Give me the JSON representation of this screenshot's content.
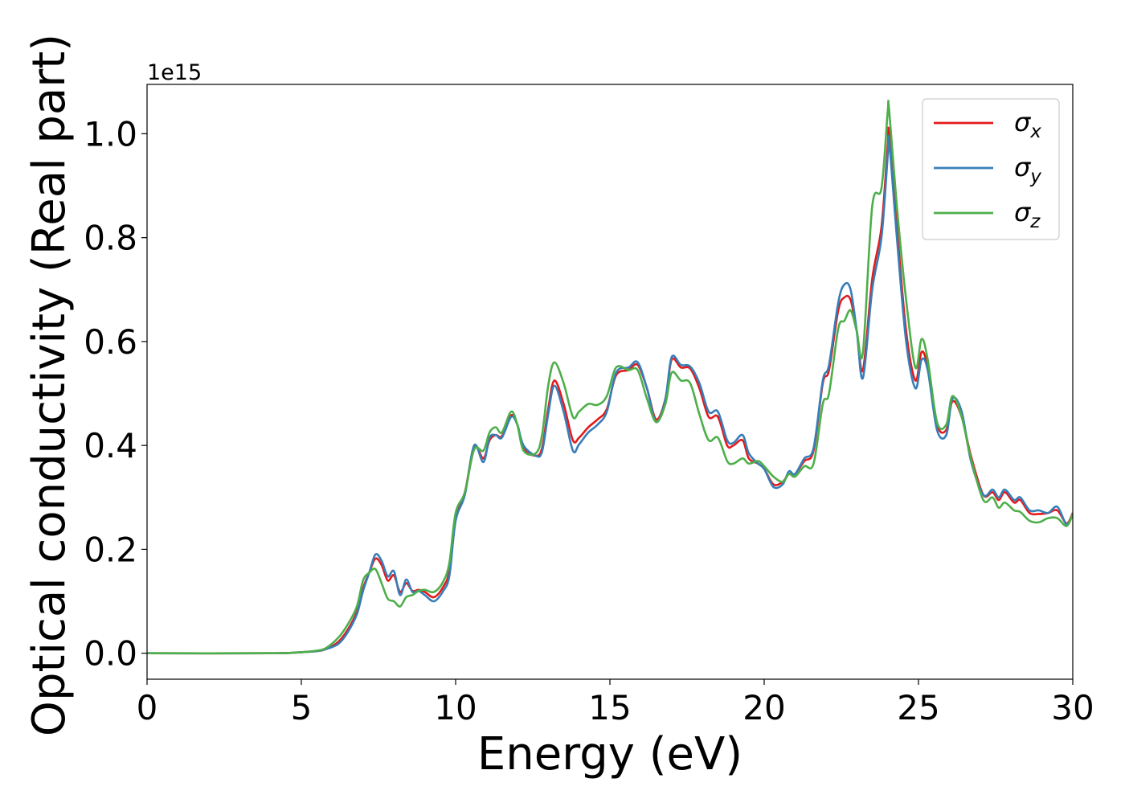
{
  "chart_data": {
    "type": "line",
    "xlabel": "Energy (eV)",
    "ylabel": "Optical conductivity (Real part)",
    "offset_text": "1e15",
    "xlim": [
      0,
      30
    ],
    "ylim": [
      -0.05,
      1.095
    ],
    "x_ticks": [
      0,
      5,
      10,
      15,
      20,
      25,
      30
    ],
    "x_tick_labels": [
      "0",
      "5",
      "10",
      "15",
      "20",
      "25",
      "30"
    ],
    "y_ticks": [
      0.0,
      0.2,
      0.4,
      0.6,
      0.8,
      1.0
    ],
    "y_tick_labels": [
      "0.0",
      "0.2",
      "0.4",
      "0.6",
      "0.8",
      "1.0"
    ],
    "grid": false,
    "legend_position": "top-right",
    "series": [
      {
        "name": "σ_x",
        "label_base": "σ",
        "label_sub": "x",
        "color": "#e41a1c",
        "points": [
          [
            0,
            0
          ],
          [
            4,
            0
          ],
          [
            5,
            0.002
          ],
          [
            5.5,
            0.004
          ],
          [
            5.8,
            0.008
          ],
          [
            6.2,
            0.022
          ],
          [
            6.5,
            0.045
          ],
          [
            6.8,
            0.08
          ],
          [
            7.0,
            0.125
          ],
          [
            7.2,
            0.155
          ],
          [
            7.4,
            0.182
          ],
          [
            7.6,
            0.17
          ],
          [
            7.8,
            0.14
          ],
          [
            8.0,
            0.15
          ],
          [
            8.2,
            0.118
          ],
          [
            8.4,
            0.135
          ],
          [
            8.6,
            0.12
          ],
          [
            8.8,
            0.122
          ],
          [
            9.0,
            0.118
          ],
          [
            9.3,
            0.108
          ],
          [
            9.6,
            0.128
          ],
          [
            9.8,
            0.16
          ],
          [
            10.0,
            0.265
          ],
          [
            10.3,
            0.31
          ],
          [
            10.6,
            0.398
          ],
          [
            10.9,
            0.375
          ],
          [
            11.1,
            0.41
          ],
          [
            11.3,
            0.42
          ],
          [
            11.5,
            0.418
          ],
          [
            11.8,
            0.458
          ],
          [
            12.0,
            0.44
          ],
          [
            12.2,
            0.395
          ],
          [
            12.6,
            0.38
          ],
          [
            12.8,
            0.395
          ],
          [
            13.0,
            0.47
          ],
          [
            13.2,
            0.525
          ],
          [
            13.5,
            0.48
          ],
          [
            13.8,
            0.41
          ],
          [
            14.0,
            0.415
          ],
          [
            14.3,
            0.435
          ],
          [
            14.6,
            0.45
          ],
          [
            14.9,
            0.47
          ],
          [
            15.2,
            0.535
          ],
          [
            15.6,
            0.545
          ],
          [
            15.9,
            0.555
          ],
          [
            16.2,
            0.51
          ],
          [
            16.5,
            0.45
          ],
          [
            16.8,
            0.49
          ],
          [
            17.0,
            0.565
          ],
          [
            17.3,
            0.55
          ],
          [
            17.6,
            0.548
          ],
          [
            17.9,
            0.51
          ],
          [
            18.2,
            0.455
          ],
          [
            18.5,
            0.455
          ],
          [
            18.8,
            0.4
          ],
          [
            19.0,
            0.4
          ],
          [
            19.3,
            0.41
          ],
          [
            19.5,
            0.375
          ],
          [
            19.8,
            0.365
          ],
          [
            20.0,
            0.355
          ],
          [
            20.3,
            0.325
          ],
          [
            20.6,
            0.33
          ],
          [
            20.8,
            0.345
          ],
          [
            21.0,
            0.345
          ],
          [
            21.3,
            0.37
          ],
          [
            21.6,
            0.39
          ],
          [
            21.9,
            0.52
          ],
          [
            22.1,
            0.545
          ],
          [
            22.4,
            0.66
          ],
          [
            22.6,
            0.685
          ],
          [
            22.8,
            0.68
          ],
          [
            23.0,
            0.62
          ],
          [
            23.2,
            0.545
          ],
          [
            23.5,
            0.72
          ],
          [
            23.8,
            0.82
          ],
          [
            24.0,
            0.975
          ],
          [
            24.05,
            1.0
          ],
          [
            24.3,
            0.82
          ],
          [
            24.6,
            0.62
          ],
          [
            24.9,
            0.525
          ],
          [
            25.1,
            0.58
          ],
          [
            25.3,
            0.55
          ],
          [
            25.6,
            0.44
          ],
          [
            25.9,
            0.43
          ],
          [
            26.1,
            0.485
          ],
          [
            26.4,
            0.455
          ],
          [
            26.7,
            0.38
          ],
          [
            27.1,
            0.305
          ],
          [
            27.4,
            0.31
          ],
          [
            27.6,
            0.295
          ],
          [
            27.8,
            0.31
          ],
          [
            28.1,
            0.29
          ],
          [
            28.3,
            0.295
          ],
          [
            28.6,
            0.27
          ],
          [
            28.9,
            0.268
          ],
          [
            29.2,
            0.27
          ],
          [
            29.5,
            0.275
          ],
          [
            29.8,
            0.25
          ],
          [
            30.0,
            0.27
          ]
        ]
      },
      {
        "name": "σ_y",
        "label_base": "σ",
        "label_sub": "y",
        "color": "#377eb8",
        "points": [
          [
            0,
            0
          ],
          [
            4,
            0
          ],
          [
            5,
            0.002
          ],
          [
            5.5,
            0.004
          ],
          [
            5.8,
            0.008
          ],
          [
            6.2,
            0.018
          ],
          [
            6.5,
            0.04
          ],
          [
            6.8,
            0.075
          ],
          [
            7.0,
            0.12
          ],
          [
            7.2,
            0.155
          ],
          [
            7.4,
            0.19
          ],
          [
            7.6,
            0.178
          ],
          [
            7.8,
            0.148
          ],
          [
            8.0,
            0.158
          ],
          [
            8.2,
            0.112
          ],
          [
            8.4,
            0.142
          ],
          [
            8.6,
            0.118
          ],
          [
            8.8,
            0.12
          ],
          [
            9.0,
            0.112
          ],
          [
            9.3,
            0.1
          ],
          [
            9.6,
            0.12
          ],
          [
            9.8,
            0.15
          ],
          [
            10.0,
            0.255
          ],
          [
            10.3,
            0.305
          ],
          [
            10.6,
            0.4
          ],
          [
            10.9,
            0.368
          ],
          [
            11.1,
            0.415
          ],
          [
            11.3,
            0.42
          ],
          [
            11.5,
            0.415
          ],
          [
            11.8,
            0.455
          ],
          [
            12.0,
            0.44
          ],
          [
            12.2,
            0.4
          ],
          [
            12.6,
            0.38
          ],
          [
            12.8,
            0.388
          ],
          [
            13.0,
            0.46
          ],
          [
            13.2,
            0.515
          ],
          [
            13.5,
            0.465
          ],
          [
            13.8,
            0.39
          ],
          [
            14.0,
            0.402
          ],
          [
            14.3,
            0.425
          ],
          [
            14.6,
            0.44
          ],
          [
            14.9,
            0.465
          ],
          [
            15.2,
            0.54
          ],
          [
            15.6,
            0.55
          ],
          [
            15.9,
            0.56
          ],
          [
            16.2,
            0.51
          ],
          [
            16.5,
            0.445
          ],
          [
            16.8,
            0.49
          ],
          [
            17.0,
            0.57
          ],
          [
            17.3,
            0.555
          ],
          [
            17.6,
            0.552
          ],
          [
            17.9,
            0.52
          ],
          [
            18.2,
            0.465
          ],
          [
            18.5,
            0.465
          ],
          [
            18.8,
            0.41
          ],
          [
            19.0,
            0.405
          ],
          [
            19.3,
            0.42
          ],
          [
            19.5,
            0.385
          ],
          [
            19.8,
            0.365
          ],
          [
            20.0,
            0.355
          ],
          [
            20.3,
            0.32
          ],
          [
            20.6,
            0.325
          ],
          [
            20.8,
            0.35
          ],
          [
            21.0,
            0.345
          ],
          [
            21.3,
            0.375
          ],
          [
            21.6,
            0.395
          ],
          [
            21.9,
            0.525
          ],
          [
            22.1,
            0.555
          ],
          [
            22.4,
            0.675
          ],
          [
            22.6,
            0.71
          ],
          [
            22.8,
            0.7
          ],
          [
            23.0,
            0.62
          ],
          [
            23.2,
            0.53
          ],
          [
            23.5,
            0.7
          ],
          [
            23.8,
            0.8
          ],
          [
            24.0,
            0.955
          ],
          [
            24.05,
            0.985
          ],
          [
            24.3,
            0.8
          ],
          [
            24.6,
            0.6
          ],
          [
            24.9,
            0.51
          ],
          [
            25.1,
            0.565
          ],
          [
            25.3,
            0.545
          ],
          [
            25.6,
            0.43
          ],
          [
            25.9,
            0.42
          ],
          [
            26.1,
            0.49
          ],
          [
            26.4,
            0.465
          ],
          [
            26.7,
            0.37
          ],
          [
            27.1,
            0.305
          ],
          [
            27.4,
            0.315
          ],
          [
            27.6,
            0.3
          ],
          [
            27.8,
            0.315
          ],
          [
            28.1,
            0.295
          ],
          [
            28.3,
            0.3
          ],
          [
            28.6,
            0.275
          ],
          [
            28.9,
            0.275
          ],
          [
            29.2,
            0.27
          ],
          [
            29.5,
            0.282
          ],
          [
            29.8,
            0.248
          ],
          [
            30.0,
            0.268
          ]
        ]
      },
      {
        "name": "σ_z",
        "label_base": "σ",
        "label_sub": "z",
        "color": "#4daf4a",
        "points": [
          [
            0,
            0
          ],
          [
            4,
            0
          ],
          [
            5,
            0.002
          ],
          [
            5.5,
            0.005
          ],
          [
            5.8,
            0.01
          ],
          [
            6.2,
            0.03
          ],
          [
            6.5,
            0.055
          ],
          [
            6.8,
            0.09
          ],
          [
            7.0,
            0.14
          ],
          [
            7.2,
            0.155
          ],
          [
            7.4,
            0.162
          ],
          [
            7.6,
            0.135
          ],
          [
            7.8,
            0.105
          ],
          [
            8.0,
            0.1
          ],
          [
            8.2,
            0.09
          ],
          [
            8.4,
            0.108
          ],
          [
            8.6,
            0.112
          ],
          [
            8.8,
            0.12
          ],
          [
            9.0,
            0.122
          ],
          [
            9.3,
            0.118
          ],
          [
            9.6,
            0.138
          ],
          [
            9.8,
            0.175
          ],
          [
            10.0,
            0.27
          ],
          [
            10.3,
            0.31
          ],
          [
            10.6,
            0.392
          ],
          [
            10.9,
            0.39
          ],
          [
            11.1,
            0.425
          ],
          [
            11.3,
            0.435
          ],
          [
            11.5,
            0.425
          ],
          [
            11.8,
            0.465
          ],
          [
            12.0,
            0.44
          ],
          [
            12.2,
            0.39
          ],
          [
            12.6,
            0.385
          ],
          [
            12.8,
            0.42
          ],
          [
            13.0,
            0.515
          ],
          [
            13.2,
            0.56
          ],
          [
            13.5,
            0.52
          ],
          [
            13.8,
            0.455
          ],
          [
            14.0,
            0.465
          ],
          [
            14.3,
            0.48
          ],
          [
            14.6,
            0.478
          ],
          [
            14.9,
            0.495
          ],
          [
            15.2,
            0.55
          ],
          [
            15.6,
            0.545
          ],
          [
            15.9,
            0.545
          ],
          [
            16.2,
            0.49
          ],
          [
            16.5,
            0.445
          ],
          [
            16.8,
            0.48
          ],
          [
            17.0,
            0.54
          ],
          [
            17.3,
            0.525
          ],
          [
            17.6,
            0.52
          ],
          [
            17.9,
            0.46
          ],
          [
            18.2,
            0.41
          ],
          [
            18.5,
            0.415
          ],
          [
            18.8,
            0.37
          ],
          [
            19.0,
            0.365
          ],
          [
            19.3,
            0.375
          ],
          [
            19.5,
            0.365
          ],
          [
            19.8,
            0.37
          ],
          [
            20.0,
            0.36
          ],
          [
            20.3,
            0.34
          ],
          [
            20.6,
            0.33
          ],
          [
            20.8,
            0.345
          ],
          [
            21.0,
            0.34
          ],
          [
            21.3,
            0.36
          ],
          [
            21.6,
            0.365
          ],
          [
            21.9,
            0.48
          ],
          [
            22.1,
            0.5
          ],
          [
            22.4,
            0.625
          ],
          [
            22.6,
            0.64
          ],
          [
            22.8,
            0.66
          ],
          [
            23.0,
            0.62
          ],
          [
            23.2,
            0.58
          ],
          [
            23.5,
            0.86
          ],
          [
            23.8,
            0.895
          ],
          [
            24.0,
            1.04
          ],
          [
            24.05,
            1.045
          ],
          [
            24.3,
            0.86
          ],
          [
            24.6,
            0.68
          ],
          [
            24.9,
            0.55
          ],
          [
            25.1,
            0.605
          ],
          [
            25.3,
            0.565
          ],
          [
            25.6,
            0.445
          ],
          [
            25.9,
            0.44
          ],
          [
            26.1,
            0.495
          ],
          [
            26.4,
            0.455
          ],
          [
            26.7,
            0.375
          ],
          [
            27.1,
            0.295
          ],
          [
            27.4,
            0.3
          ],
          [
            27.6,
            0.28
          ],
          [
            27.8,
            0.29
          ],
          [
            28.1,
            0.275
          ],
          [
            28.3,
            0.272
          ],
          [
            28.6,
            0.255
          ],
          [
            28.9,
            0.252
          ],
          [
            29.2,
            0.26
          ],
          [
            29.5,
            0.26
          ],
          [
            29.8,
            0.245
          ],
          [
            30.0,
            0.268
          ]
        ]
      }
    ]
  }
}
